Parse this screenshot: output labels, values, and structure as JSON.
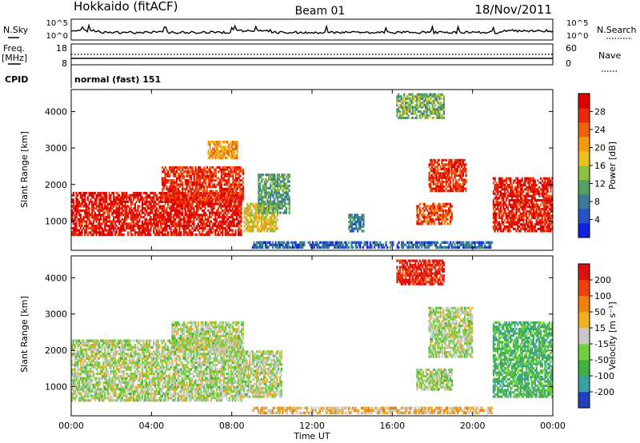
{
  "header": {
    "station": "Hokkaido (fitACF)",
    "beam": "Beam 01",
    "date": "18/Nov/2011"
  },
  "status_panels": {
    "nsky_label": "N.Sky",
    "nsky_ticks": [
      "10^5",
      "10^0"
    ],
    "nsearch_label": "N.Search",
    "nsearch_ticks": [
      "10^5",
      "10^0"
    ],
    "freq_label": "Freq.",
    "freq_unit": "[MHz]",
    "freq_ticks": [
      "18",
      "8"
    ],
    "nave_label": "Nave",
    "nave_ticks": [
      "60",
      "0"
    ],
    "cpid_label": "CPID",
    "cpid_value": "normal (fast) 151"
  },
  "chart_data": [
    {
      "type": "heatmap",
      "name": "power",
      "ylabel": "Slant Range [km]",
      "yticks": [
        "1000",
        "2000",
        "3000",
        "4000"
      ],
      "ylim": [
        200,
        4600
      ],
      "xlim": [
        0,
        24
      ],
      "colorbar_label": "Power [dB]",
      "colorbar_ticks": [
        "28",
        "24",
        "20",
        "16",
        "12",
        "8",
        "4"
      ],
      "colorbar_colors": [
        "#1020e0",
        "#2a50c8",
        "#3a7a9a",
        "#50a060",
        "#90c040",
        "#e8c020",
        "#f39a10",
        "#f06010",
        "#e82808",
        "#e00000"
      ],
      "regions": [
        {
          "t0": 0.0,
          "t1": 8.5,
          "r0": 600,
          "r1": 1800,
          "level": 0.92
        },
        {
          "t0": 4.5,
          "t1": 8.6,
          "r0": 1500,
          "r1": 2500,
          "level": 0.85
        },
        {
          "t0": 8.6,
          "t1": 10.3,
          "r0": 700,
          "r1": 1500,
          "level": 0.55
        },
        {
          "t0": 9.3,
          "t1": 10.9,
          "r0": 1200,
          "r1": 2300,
          "level": 0.35
        },
        {
          "t0": 6.8,
          "t1": 8.3,
          "r0": 2700,
          "r1": 3200,
          "level": 0.65
        },
        {
          "t0": 13.8,
          "t1": 14.6,
          "r0": 700,
          "r1": 1200,
          "level": 0.25
        },
        {
          "t0": 17.2,
          "t1": 19.0,
          "r0": 900,
          "r1": 1500,
          "level": 0.8
        },
        {
          "t0": 17.8,
          "t1": 19.7,
          "r0": 1800,
          "r1": 2700,
          "level": 0.85
        },
        {
          "t0": 16.2,
          "t1": 18.6,
          "r0": 3800,
          "r1": 4500,
          "level": 0.4
        },
        {
          "t0": 21.0,
          "t1": 24.0,
          "r0": 700,
          "r1": 2200,
          "level": 0.9
        },
        {
          "t0": 9.0,
          "t1": 21.0,
          "r0": 250,
          "r1": 450,
          "level": 0.2
        }
      ]
    },
    {
      "type": "heatmap",
      "name": "velocity",
      "ylabel": "Slant Range [km]",
      "yticks": [
        "1000",
        "2000",
        "3000",
        "4000"
      ],
      "ylim": [
        200,
        4600
      ],
      "xlim": [
        0,
        24
      ],
      "xlabel": "Time UT",
      "xticks": [
        "00:00",
        "04:00",
        "08:00",
        "12:00",
        "16:00",
        "20:00",
        "00:00"
      ],
      "colorbar_label": "Velocity [m s⁻¹]",
      "colorbar_ticks": [
        "200",
        "100",
        "50",
        "15",
        "-15",
        "-50",
        "-100",
        "-200"
      ],
      "colorbar_colors": [
        "#2040c0",
        "#3aa0a0",
        "#40b040",
        "#70d040",
        "#c8c8c8",
        "#f0b020",
        "#f08010",
        "#f04010",
        "#e01010"
      ],
      "regions": [
        {
          "t0": 0.0,
          "t1": 8.5,
          "r0": 600,
          "r1": 2300,
          "level": 0.46
        },
        {
          "t0": 5.0,
          "t1": 8.6,
          "r0": 2000,
          "r1": 2800,
          "level": 0.46
        },
        {
          "t0": 8.5,
          "t1": 10.5,
          "r0": 700,
          "r1": 2000,
          "level": 0.46
        },
        {
          "t0": 17.2,
          "t1": 19.0,
          "r0": 900,
          "r1": 1500,
          "level": 0.46
        },
        {
          "t0": 17.8,
          "t1": 20.0,
          "r0": 1800,
          "r1": 3200,
          "level": 0.46
        },
        {
          "t0": 16.2,
          "t1": 18.6,
          "r0": 3800,
          "r1": 4500,
          "level": 0.9
        },
        {
          "t0": 21.0,
          "t1": 24.0,
          "r0": 700,
          "r1": 2800,
          "level": 0.28
        },
        {
          "t0": 9.0,
          "t1": 21.0,
          "r0": 250,
          "r1": 450,
          "level": 0.6
        }
      ]
    }
  ]
}
